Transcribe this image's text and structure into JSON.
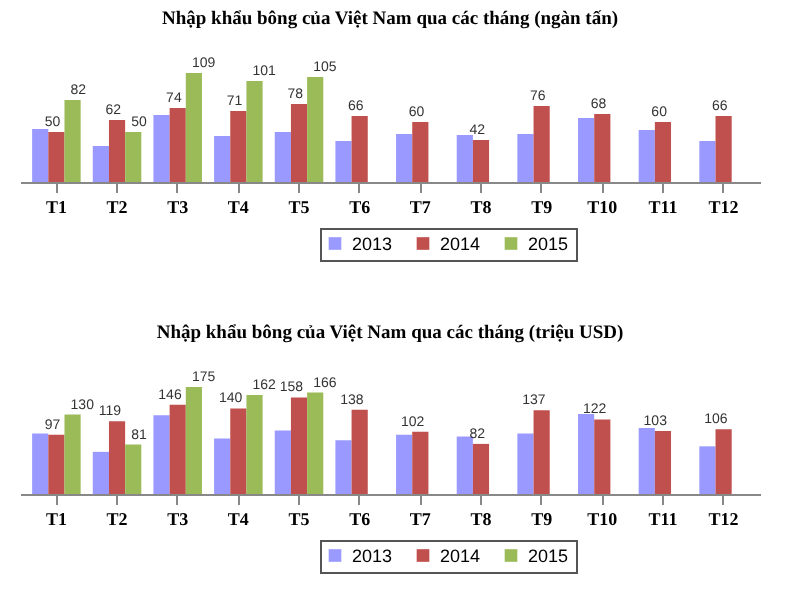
{
  "chart_data": [
    {
      "type": "bar",
      "title": "Nhập khẩu bông của Việt Nam qua các tháng (ngàn tấn)",
      "categories": [
        "T1",
        "T2",
        "T3",
        "T4",
        "T5",
        "T6",
        "T7",
        "T8",
        "T9",
        "T10",
        "T11",
        "T12"
      ],
      "legend": "bottom",
      "series": [
        {
          "name": "2013",
          "color": "#9999ff",
          "values": [
            53,
            36,
            67,
            46,
            50,
            41,
            48,
            47,
            48,
            64,
            52,
            41
          ]
        },
        {
          "name": "2014",
          "color": "#c0504d",
          "values": [
            50,
            62,
            74,
            71,
            78,
            66,
            60,
            42,
            76,
            68,
            60,
            66
          ],
          "value_labels": [
            "50",
            "62",
            "74",
            "71",
            "78",
            "66",
            "60",
            "42",
            "76",
            "68",
            "60",
            "66"
          ]
        },
        {
          "name": "2015",
          "color": "#9bbb59",
          "values": [
            82,
            50,
            109,
            101,
            105,
            null,
            null,
            null,
            null,
            null,
            null,
            null
          ],
          "value_labels": [
            "82",
            "50",
            "109",
            "101",
            "105",
            null,
            null,
            null,
            null,
            null,
            null,
            null
          ]
        }
      ]
    },
    {
      "type": "bar",
      "title": "Nhập khẩu bông của Việt Nam qua các tháng (triệu USD)",
      "categories": [
        "T1",
        "T2",
        "T3",
        "T4",
        "T5",
        "T6",
        "T7",
        "T8",
        "T9",
        "T10",
        "T11",
        "T12"
      ],
      "legend": "bottom",
      "series": [
        {
          "name": "2013",
          "color": "#9999ff",
          "values": [
            99,
            69,
            129,
            91,
            104,
            88,
            97,
            94,
            99,
            131,
            108,
            78
          ]
        },
        {
          "name": "2014",
          "color": "#c0504d",
          "values": [
            97,
            119,
            146,
            140,
            158,
            138,
            102,
            82,
            137,
            122,
            103,
            106
          ],
          "value_labels": [
            "97",
            "119",
            "146",
            "140",
            "158",
            "138",
            "102",
            "82",
            "137",
            "122",
            "103",
            "106"
          ]
        },
        {
          "name": "2015",
          "color": "#9bbb59",
          "values": [
            130,
            81,
            175,
            162,
            166,
            null,
            null,
            null,
            null,
            null,
            null,
            null
          ],
          "value_labels": [
            "130",
            "81",
            "175",
            "162",
            "166",
            null,
            null,
            null,
            null,
            null,
            null,
            null
          ]
        }
      ]
    }
  ]
}
